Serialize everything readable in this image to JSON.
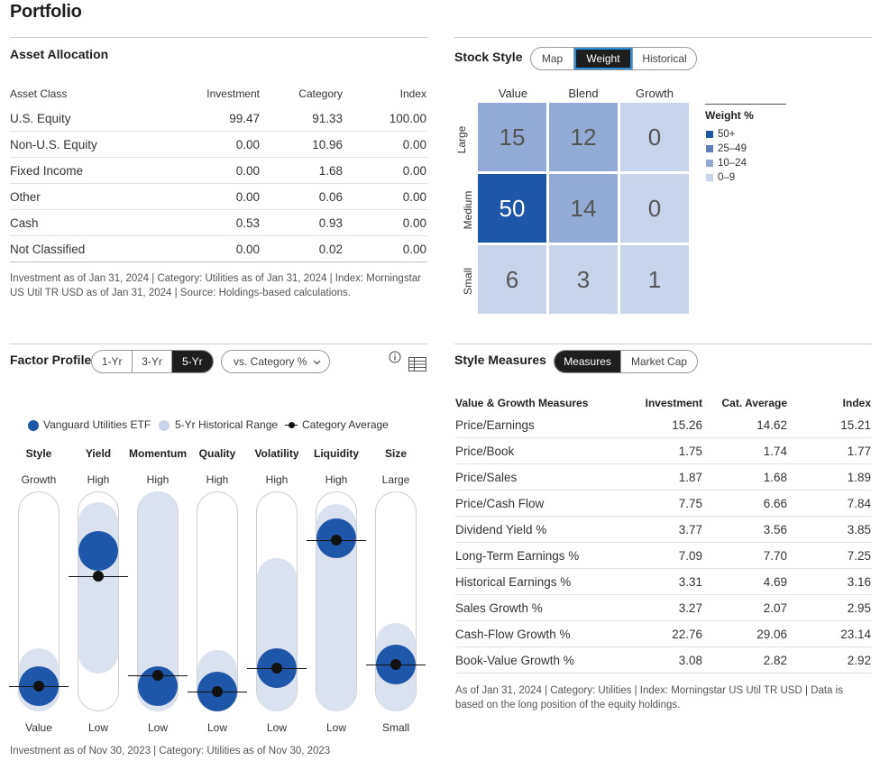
{
  "page_title": "Portfolio",
  "asset_allocation": {
    "title": "Asset Allocation",
    "headers": [
      "Asset Class",
      "Investment",
      "Category",
      "Index"
    ],
    "rows": [
      [
        "U.S. Equity",
        "99.47",
        "91.33",
        "100.00"
      ],
      [
        "Non-U.S. Equity",
        "0.00",
        "10.96",
        "0.00"
      ],
      [
        "Fixed Income",
        "0.00",
        "1.68",
        "0.00"
      ],
      [
        "Other",
        "0.00",
        "0.06",
        "0.00"
      ],
      [
        "Cash",
        "0.53",
        "0.93",
        "0.00"
      ],
      [
        "Not Classified",
        "0.00",
        "0.02",
        "0.00"
      ]
    ],
    "footnote": "Investment as of Jan 31, 2024 | Category: Utilities as of Jan 31, 2024 | Index: Morningstar US Util TR USD as of Jan 31, 2024 | Source: Holdings-based calculations."
  },
  "stock_style": {
    "title": "Stock Style",
    "tabs": [
      "Map",
      "Weight",
      "Historical"
    ],
    "active_tab": "Weight",
    "columns": [
      "Value",
      "Blend",
      "Growth"
    ],
    "rows": [
      "Large",
      "Medium",
      "Small"
    ],
    "values": [
      [
        15,
        12,
        0
      ],
      [
        50,
        14,
        0
      ],
      [
        6,
        3,
        1
      ]
    ],
    "legend_title": "Weight %",
    "legend": [
      {
        "label": "50+",
        "color": "#1e56a8"
      },
      {
        "label": "25–49",
        "color": "#5b7fbd"
      },
      {
        "label": "10–24",
        "color": "#93aad6"
      },
      {
        "label": "0–9",
        "color": "#c8d4ea"
      }
    ]
  },
  "factor_profile": {
    "title": "Factor Profile",
    "periods": [
      "1-Yr",
      "3-Yr",
      "5-Yr"
    ],
    "active_period": "5-Yr",
    "compare_label": "vs. Category %",
    "info_icon": "info-icon",
    "table_icon": "table-icon",
    "legend": {
      "fund": "Vanguard Utilities ETF",
      "range": "5-Yr Historical Range",
      "avg": "Category Average"
    },
    "colors": {
      "fund": "#1e56a8",
      "range": "#dbe2ef",
      "avg": "#111111"
    },
    "factors": [
      {
        "name": "Style",
        "top": "Growth",
        "bottom": "Value",
        "fund": 0.03,
        "avg": 0.03,
        "range_low": 0.0,
        "range_high": 0.13
      },
      {
        "name": "Yield",
        "top": "High",
        "bottom": "Low",
        "fund": 0.78,
        "avg": 0.64,
        "range_low": 0.21,
        "range_high": 0.94
      },
      {
        "name": "Momentum",
        "top": "High",
        "bottom": "Low",
        "fund": 0.03,
        "avg": 0.09,
        "range_low": 0.0,
        "range_high": 1.0
      },
      {
        "name": "Quality",
        "top": "High",
        "bottom": "Low",
        "fund": 0.0,
        "avg": 0.0,
        "range_low": 0.0,
        "range_high": 0.12
      },
      {
        "name": "Volatility",
        "top": "High",
        "bottom": "Low",
        "fund": 0.13,
        "avg": 0.13,
        "range_low": 0.0,
        "range_high": 0.63
      },
      {
        "name": "Liquidity",
        "top": "High",
        "bottom": "Low",
        "fund": 0.85,
        "avg": 0.84,
        "range_low": 0.0,
        "range_high": 0.93
      },
      {
        "name": "Size",
        "top": "Large",
        "bottom": "Small",
        "fund": 0.15,
        "avg": 0.15,
        "range_low": 0.0,
        "range_high": 0.27
      }
    ],
    "footnote": "Investment as of Nov 30, 2023 | Category: Utilities as of Nov 30, 2023"
  },
  "style_measures": {
    "title": "Style Measures",
    "tabs": [
      "Measures",
      "Market Cap"
    ],
    "active_tab": "Measures",
    "headers": [
      "Value & Growth Measures",
      "Investment",
      "Cat. Average",
      "Index"
    ],
    "rows": [
      [
        "Price/Earnings",
        "15.26",
        "14.62",
        "15.21"
      ],
      [
        "Price/Book",
        "1.75",
        "1.74",
        "1.77"
      ],
      [
        "Price/Sales",
        "1.87",
        "1.68",
        "1.89"
      ],
      [
        "Price/Cash Flow",
        "7.75",
        "6.66",
        "7.84"
      ],
      [
        "Dividend Yield %",
        "3.77",
        "3.56",
        "3.85"
      ],
      [
        "Long-Term Earnings %",
        "7.09",
        "7.70",
        "7.25"
      ],
      [
        "Historical Earnings %",
        "3.31",
        "4.69",
        "3.16"
      ],
      [
        "Sales Growth %",
        "3.27",
        "2.07",
        "2.95"
      ],
      [
        "Cash-Flow Growth %",
        "22.76",
        "29.06",
        "23.14"
      ],
      [
        "Book-Value Growth %",
        "3.08",
        "2.82",
        "2.92"
      ]
    ],
    "footnote": "As of Jan 31, 2024 | Category: Utilities | Index: Morningstar US Util TR USD | Data is based on the long position of the equity holdings."
  }
}
